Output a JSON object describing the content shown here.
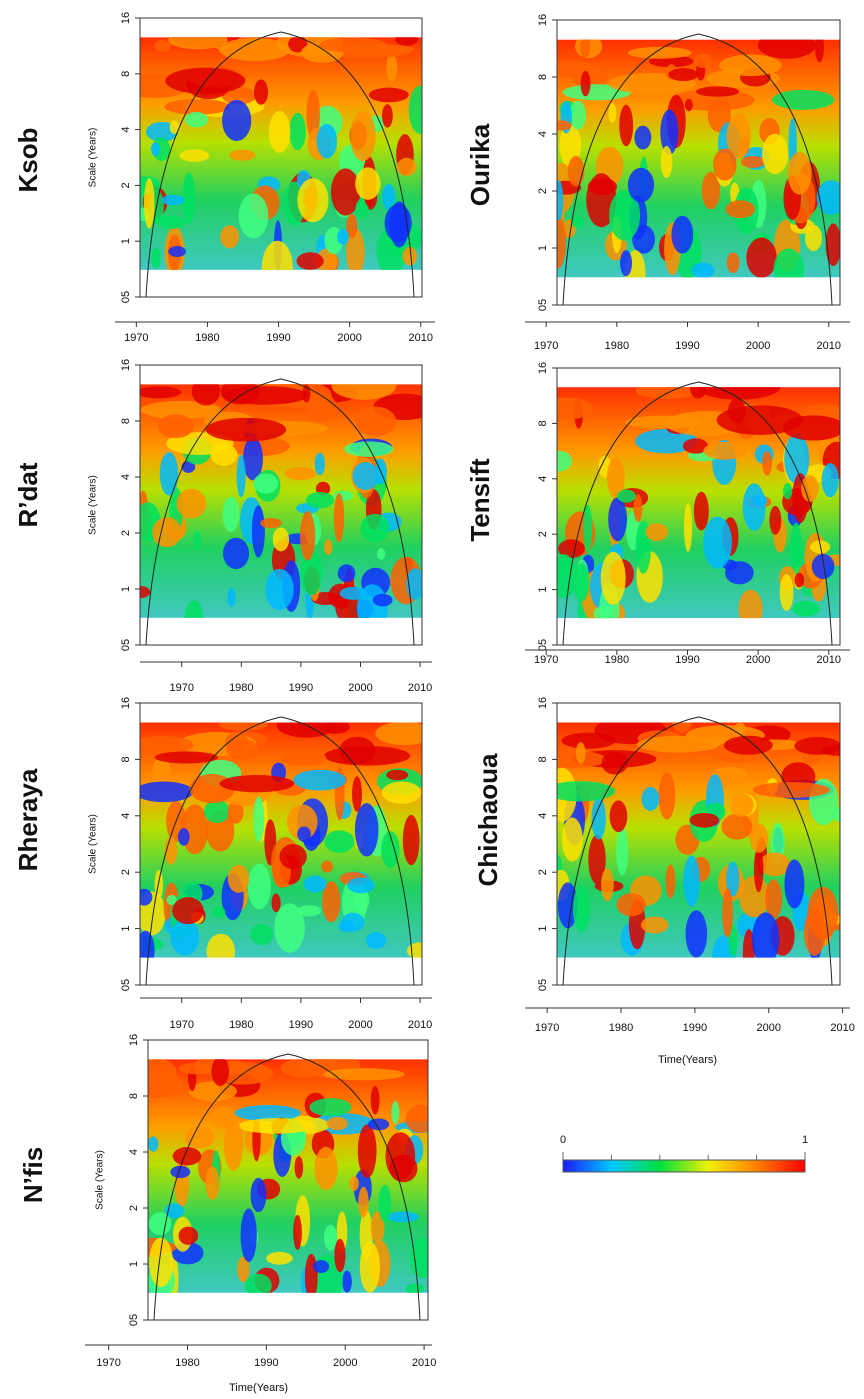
{
  "chart_data": [
    {
      "type": "wavelet",
      "title": "Ksob",
      "y_label": "Scale (Years)",
      "log_scale": true,
      "ylim": [
        0.5,
        16
      ],
      "yticks": [
        {
          "value": 0.5,
          "label": "05"
        },
        1,
        2,
        4,
        8,
        16
      ],
      "xlim": [
        1967,
        2012
      ],
      "xticks": [
        1970,
        1980,
        1990,
        2000,
        2010
      ]
    },
    {
      "type": "wavelet",
      "title": "Ourika",
      "log_scale": true,
      "ylim": [
        0.5,
        16
      ],
      "yticks": [
        {
          "value": 0.5,
          "label": "05"
        },
        1,
        2,
        4,
        8,
        16
      ],
      "xlim": [
        1967,
        2013
      ],
      "xticks": [
        1970,
        1980,
        1990,
        2000,
        2010
      ]
    },
    {
      "type": "wavelet",
      "title": "R’dat",
      "y_label": "Scale (Years)",
      "log_scale": true,
      "ylim": [
        0.5,
        16
      ],
      "yticks": [
        {
          "value": 0.5,
          "label": "05"
        },
        1,
        2,
        4,
        8,
        16
      ],
      "xlim": [
        1963,
        2012
      ],
      "xticks": [
        1970,
        1980,
        1990,
        2000,
        2010
      ]
    },
    {
      "type": "wavelet",
      "title": "Tensift",
      "log_scale": true,
      "ylim": [
        0.5,
        16
      ],
      "yticks": [
        {
          "value": 0.5,
          "label": "05"
        },
        1,
        2,
        4,
        8,
        16
      ],
      "xlim": [
        1967,
        2013
      ],
      "xticks": [
        1970,
        1980,
        1990,
        2000,
        2010
      ]
    },
    {
      "type": "wavelet",
      "title": "Rheraya",
      "y_label": "Scale (Years)",
      "log_scale": true,
      "ylim": [
        0.5,
        16
      ],
      "yticks": [
        {
          "value": 0.5,
          "label": "05"
        },
        1,
        2,
        4,
        8,
        16
      ],
      "xlim": [
        1963,
        2012
      ],
      "xticks": [
        1970,
        1980,
        1990,
        2000,
        2010
      ]
    },
    {
      "type": "wavelet",
      "title": "Chichaoua",
      "x_label": "Time(Years)",
      "log_scale": true,
      "ylim": [
        0.5,
        16
      ],
      "yticks": [
        {
          "value": 0.5,
          "label": "05"
        },
        1,
        2,
        4,
        8,
        16
      ],
      "xlim": [
        1967,
        2011
      ],
      "xticks": [
        1970,
        1980,
        1990,
        2000,
        2010
      ]
    },
    {
      "type": "wavelet",
      "title": "N’fis",
      "y_label": "Scale (Years)",
      "x_label": "Time(Years)",
      "log_scale": true,
      "ylim": [
        0.5,
        16
      ],
      "yticks": [
        {
          "value": 0.5,
          "label": "05"
        },
        1,
        2,
        4,
        8,
        16
      ],
      "xlim": [
        1967,
        2011
      ],
      "xticks": [
        1970,
        1980,
        1990,
        2000,
        2010
      ]
    },
    {
      "type": "colorbar",
      "xlim": [
        0,
        1
      ],
      "xticks": [
        0,
        1
      ],
      "colors": [
        "#1a1aff",
        "#00c8ff",
        "#00e040",
        "#f0f000",
        "#ff8000",
        "#ff0000"
      ]
    }
  ]
}
